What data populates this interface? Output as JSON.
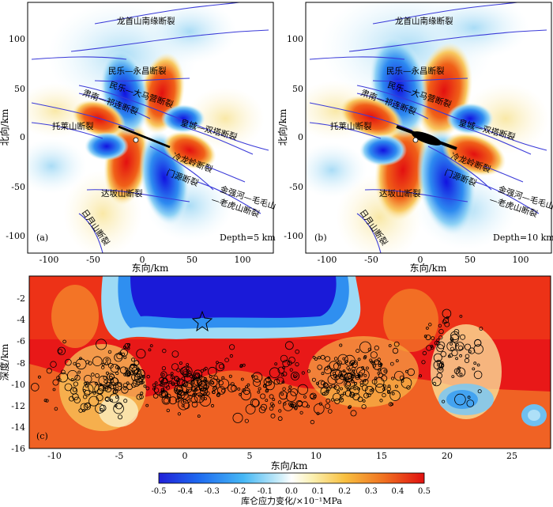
{
  "panel_a": {
    "tag": "(a)",
    "depth": "Depth=5 km",
    "xlabel": "东向/km",
    "ylabel": "北向/km",
    "xticks": [
      "-100",
      "-50",
      "0",
      "50",
      "100"
    ],
    "yticks": [
      "100",
      "50",
      "0",
      "-50",
      "-100"
    ],
    "faults": [
      "龙首山南缘断裂",
      "民乐—永昌断裂",
      "民乐—大马营断裂",
      "肃南—祁连断裂",
      "托莱山断裂",
      "皇城—双塔断裂",
      "冷龙岭断裂",
      "门源断裂",
      "达坂山断裂",
      "金强河—毛毛山",
      "—老虎山断裂",
      "日月山断裂"
    ]
  },
  "panel_b": {
    "tag": "(b)",
    "depth": "Depth=10 km",
    "xlabel": "东向/km",
    "ylabel": "北向/km",
    "xticks": [
      "-100",
      "-50",
      "0",
      "50",
      "100"
    ],
    "yticks": [
      "100",
      "50",
      "0",
      "-50",
      "-100"
    ],
    "faults": [
      "龙首山南缘断裂",
      "民乐—永昌断裂",
      "民乐—大马营断裂",
      "肃南—祁连断裂",
      "托莱山断裂",
      "皇城—双塔断裂",
      "冷龙岭断裂",
      "门源断裂",
      "达坂山断裂",
      "金强河—毛毛山",
      "—老虎山断裂",
      "日月山断裂"
    ]
  },
  "panel_c": {
    "tag": "(c)",
    "xlabel": "东向/km",
    "ylabel": "深度/km",
    "xticks": [
      "-10",
      "-5",
      "0",
      "5",
      "10",
      "15",
      "20",
      "25"
    ],
    "yticks": [
      "-2",
      "-4",
      "-6",
      "-8",
      "-10",
      "-12",
      "-14",
      "-16"
    ]
  },
  "colorbar": {
    "label": "库仑应力变化/×10⁻¹MPa",
    "ticks": [
      "-0.5",
      "-0.4",
      "-0.3",
      "-0.2",
      "-0.1",
      "0.0",
      "0.1",
      "0.2",
      "0.3",
      "0.4",
      "0.5"
    ]
  },
  "colors": {
    "negative": "#1a14e8",
    "neutral": "#ffffff",
    "positive": "#e81010",
    "fault": "#3a3ad8"
  },
  "chart_data": [
    {
      "type": "heatmap",
      "quantity": "Coulomb stress change map view",
      "depth_km": 5,
      "xlim": [
        -115,
        130
      ],
      "ylim": [
        -120,
        135
      ],
      "epicenter": [
        0,
        0
      ]
    },
    {
      "type": "heatmap",
      "quantity": "Coulomb stress change map view",
      "depth_km": 10,
      "xlim": [
        -115,
        130
      ],
      "ylim": [
        -120,
        135
      ],
      "epicenter": [
        0,
        0
      ]
    },
    {
      "type": "heatmap",
      "quantity": "Coulomb stress change cross-section with aftershocks",
      "xlim": [
        -12.5,
        28
      ],
      "ylim": [
        -16,
        0
      ],
      "mainshock": [
        1.5,
        -4
      ]
    }
  ]
}
